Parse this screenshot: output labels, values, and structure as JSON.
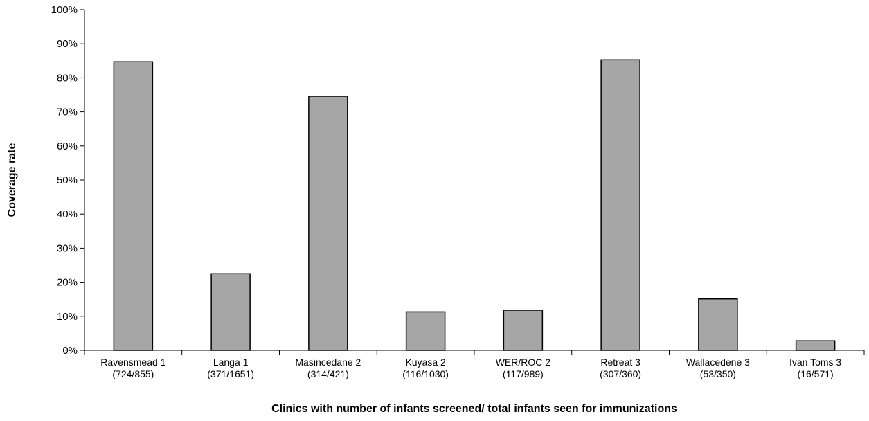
{
  "chart_data": {
    "type": "bar",
    "title": "",
    "xlabel": "Clinics with number of infants screened/ total infants seen for immunizations",
    "ylabel": "Coverage rate",
    "ylim": [
      0,
      100
    ],
    "yticks": [
      "0%",
      "10%",
      "20%",
      "30%",
      "40%",
      "50%",
      "60%",
      "70%",
      "80%",
      "90%",
      "100%"
    ],
    "categories": [
      [
        "Ravensmead 1",
        "(724/855)"
      ],
      [
        "Langa 1",
        "(371/1651)"
      ],
      [
        "Masincedane 2",
        "(314/421)"
      ],
      [
        "Kuyasa 2",
        "(116/1030)"
      ],
      [
        "WER/ROC 2",
        "(117/989)"
      ],
      [
        "Retreat 3",
        "(307/360)"
      ],
      [
        "Wallacedene 3",
        "(53/350)"
      ],
      [
        "Ivan Toms 3",
        "(16/571)"
      ]
    ],
    "values": [
      84.7,
      22.5,
      74.6,
      11.3,
      11.8,
      85.3,
      15.1,
      2.8
    ],
    "grid": false,
    "bar_color": "#a6a6a6"
  }
}
